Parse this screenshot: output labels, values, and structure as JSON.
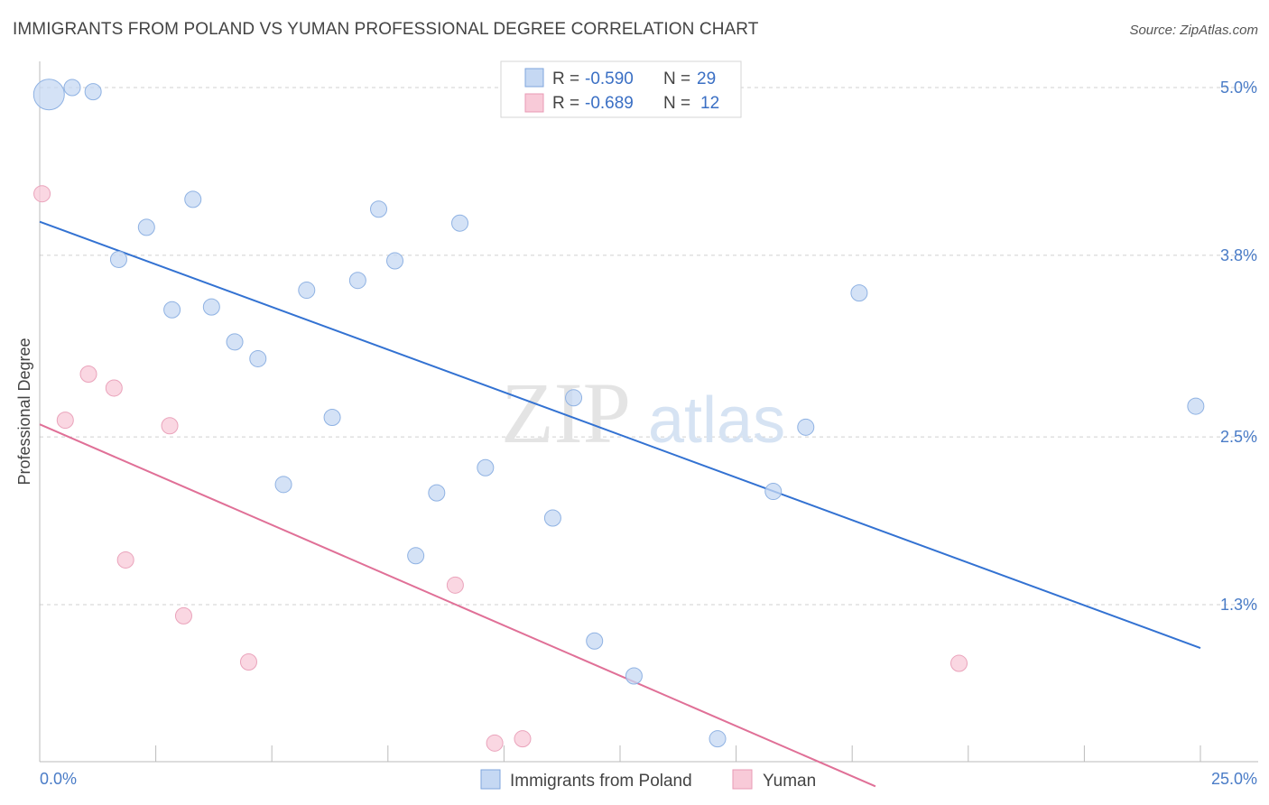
{
  "title": "IMMIGRANTS FROM POLAND VS YUMAN PROFESSIONAL DEGREE CORRELATION CHART",
  "source": "Source: ZipAtlas.com",
  "watermark": {
    "zip": "ZIP",
    "atlas": "atlas"
  },
  "colors": {
    "blue": "#4a7cc7",
    "blue_fill": "#c5d8f3",
    "blue_line": "#3372d2",
    "pink_fill": "#f8cad8",
    "pink_line": "#e07097",
    "grid": "#d0d0d0"
  },
  "legend": {
    "rows": [
      {
        "r_label": "R =",
        "r_value": "-0.590",
        "n_label": "N =",
        "n_value": "29",
        "series": "blue"
      },
      {
        "r_label": "R =",
        "r_value": "-0.689",
        "n_label": "N =",
        "n_value": "12",
        "series": "pink"
      }
    ]
  },
  "chart_data": {
    "type": "scatter",
    "title": "IMMIGRANTS FROM POLAND VS YUMAN PROFESSIONAL DEGREE CORRELATION CHART",
    "xlabel": "",
    "ylabel": "Professional Degree",
    "xlim": [
      0,
      25
    ],
    "ylim": [
      0,
      5.2
    ],
    "x_tick_labels": [
      "0.0%",
      "25.0%"
    ],
    "y_ticks": [
      {
        "value": 5.0,
        "label": "5.0%"
      },
      {
        "value": 3.8,
        "label": "3.8%"
      },
      {
        "value": 2.5,
        "label": "2.5%"
      },
      {
        "value": 1.3,
        "label": "1.3%"
      }
    ],
    "series": [
      {
        "name": "Immigrants from Poland",
        "color": "blue",
        "points": [
          {
            "x": 0.2,
            "y": 4.95,
            "size": "large"
          },
          {
            "x": 0.7,
            "y": 5.0
          },
          {
            "x": 1.15,
            "y": 4.97
          },
          {
            "x": 3.3,
            "y": 4.2
          },
          {
            "x": 2.3,
            "y": 4.0
          },
          {
            "x": 1.7,
            "y": 3.77
          },
          {
            "x": 2.85,
            "y": 3.41
          },
          {
            "x": 3.7,
            "y": 3.43
          },
          {
            "x": 4.2,
            "y": 3.18
          },
          {
            "x": 4.7,
            "y": 3.06
          },
          {
            "x": 5.25,
            "y": 2.16
          },
          {
            "x": 5.75,
            "y": 3.55
          },
          {
            "x": 6.3,
            "y": 2.64
          },
          {
            "x": 6.85,
            "y": 3.62
          },
          {
            "x": 7.3,
            "y": 4.13
          },
          {
            "x": 7.65,
            "y": 3.76
          },
          {
            "x": 8.1,
            "y": 1.65
          },
          {
            "x": 8.55,
            "y": 2.1
          },
          {
            "x": 9.05,
            "y": 4.03
          },
          {
            "x": 9.6,
            "y": 2.28
          },
          {
            "x": 11.05,
            "y": 1.92
          },
          {
            "x": 11.5,
            "y": 2.78
          },
          {
            "x": 11.95,
            "y": 1.04
          },
          {
            "x": 12.8,
            "y": 0.79
          },
          {
            "x": 14.6,
            "y": 0.34
          },
          {
            "x": 15.8,
            "y": 2.11
          },
          {
            "x": 16.5,
            "y": 2.57
          },
          {
            "x": 17.65,
            "y": 3.53
          },
          {
            "x": 24.9,
            "y": 2.72
          }
        ],
        "trend": {
          "x": [
            0,
            25
          ],
          "y": [
            4.04,
            0.99
          ]
        }
      },
      {
        "name": "Yuman",
        "color": "pink",
        "points": [
          {
            "x": 0.05,
            "y": 4.24
          },
          {
            "x": 0.55,
            "y": 2.62
          },
          {
            "x": 1.05,
            "y": 2.95
          },
          {
            "x": 1.6,
            "y": 2.85
          },
          {
            "x": 1.85,
            "y": 1.62
          },
          {
            "x": 2.8,
            "y": 2.58
          },
          {
            "x": 3.1,
            "y": 1.22
          },
          {
            "x": 4.5,
            "y": 0.89
          },
          {
            "x": 8.95,
            "y": 1.44
          },
          {
            "x": 9.8,
            "y": 0.31
          },
          {
            "x": 10.4,
            "y": 0.34
          },
          {
            "x": 19.8,
            "y": 0.88
          }
        ],
        "trend": {
          "x": [
            0,
            18
          ],
          "y": [
            2.59,
            0.0
          ]
        }
      }
    ]
  }
}
